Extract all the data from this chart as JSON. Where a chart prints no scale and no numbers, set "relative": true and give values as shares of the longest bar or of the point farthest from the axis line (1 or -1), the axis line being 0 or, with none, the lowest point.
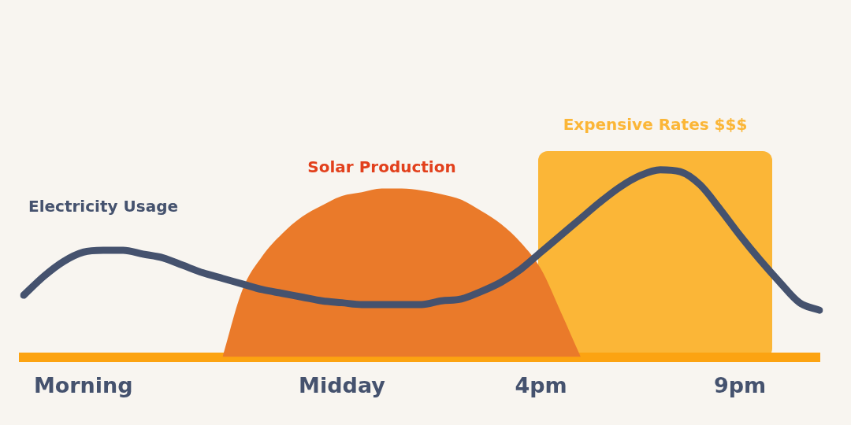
{
  "chart_data": {
    "type": "line",
    "relative": true,
    "categories": [
      null,
      null,
      null,
      "Morning",
      null,
      null,
      null,
      null,
      null,
      null,
      null,
      null,
      null,
      null,
      null,
      null,
      "Midday",
      null,
      null,
      null,
      null,
      null,
      null,
      null,
      null,
      null,
      "4pm",
      null,
      null,
      null,
      null,
      null,
      null,
      null,
      null,
      null,
      "9pm",
      null,
      null,
      null,
      null
    ],
    "series": [
      {
        "name": "Solar Production",
        "type": "area",
        "color": "#ea7a2a",
        "values": [
          null,
          null,
          null,
          null,
          null,
          null,
          null,
          null,
          null,
          null,
          0,
          0.36,
          0.54,
          0.66,
          0.75,
          0.81,
          0.86,
          0.88,
          0.9,
          0.9,
          0.89,
          0.87,
          0.84,
          0.78,
          0.71,
          0.61,
          0.47,
          0.24,
          0,
          null,
          null,
          null,
          null,
          null,
          null,
          null,
          null,
          null,
          null,
          null,
          null
        ]
      },
      {
        "name": "Electricity Usage",
        "type": "line",
        "color": "#45526e",
        "values": [
          0.33,
          0.43,
          0.51,
          0.56,
          0.57,
          0.57,
          0.55,
          0.53,
          0.49,
          0.45,
          0.42,
          0.39,
          0.36,
          0.34,
          0.32,
          0.3,
          0.29,
          0.28,
          0.28,
          0.28,
          0.28,
          0.3,
          0.31,
          0.35,
          0.4,
          0.47,
          0.56,
          0.65,
          0.74,
          0.83,
          0.91,
          0.97,
          1,
          0.99,
          0.92,
          0.79,
          0.65,
          0.52,
          0.4,
          0.29,
          0.25
        ]
      }
    ],
    "annotations": [
      "Expensive Rates $$$"
    ],
    "legend": false,
    "grid": false,
    "marker": "none"
  }
}
